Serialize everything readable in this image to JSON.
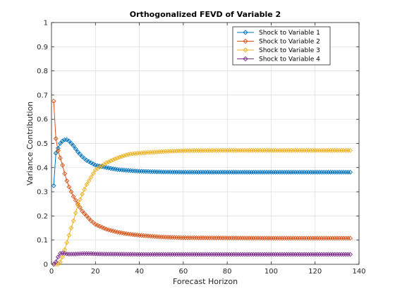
{
  "chart_data": {
    "type": "line",
    "title": "Orthogonalized FEVD of Variable 2",
    "xlabel": "Forecast Horizon",
    "ylabel": "Variance Contribution",
    "xlim": [
      0,
      140
    ],
    "ylim": [
      0,
      1
    ],
    "xticks": [
      "0",
      "20",
      "40",
      "60",
      "80",
      "100",
      "120",
      "140"
    ],
    "yticks": [
      "0",
      "0.1",
      "0.2",
      "0.3",
      "0.4",
      "0.5",
      "0.6",
      "0.7",
      "0.8",
      "0.9",
      "1"
    ],
    "grid": true,
    "legend_position": "top-right",
    "marker": "diamond",
    "x_range": [
      1,
      136
    ],
    "series": [
      {
        "name": "Shock to Variable 1",
        "color": "#0072BD",
        "points": [
          [
            1,
            0.325
          ],
          [
            2,
            0.46
          ],
          [
            3,
            0.48
          ],
          [
            4,
            0.5
          ],
          [
            5,
            0.51
          ],
          [
            6,
            0.515
          ],
          [
            7,
            0.515
          ],
          [
            8,
            0.51
          ],
          [
            9,
            0.5
          ],
          [
            10,
            0.49
          ],
          [
            12,
            0.465
          ],
          [
            14,
            0.445
          ],
          [
            16,
            0.43
          ],
          [
            18,
            0.42
          ],
          [
            20,
            0.41
          ],
          [
            25,
            0.4
          ],
          [
            30,
            0.392
          ],
          [
            35,
            0.388
          ],
          [
            40,
            0.385
          ],
          [
            50,
            0.382
          ],
          [
            60,
            0.381
          ],
          [
            80,
            0.381
          ],
          [
            100,
            0.381
          ],
          [
            136,
            0.381
          ]
        ]
      },
      {
        "name": "Shock to Variable 2",
        "color": "#D95319",
        "points": [
          [
            1,
            0.675
          ],
          [
            2,
            0.52
          ],
          [
            3,
            0.47
          ],
          [
            4,
            0.44
          ],
          [
            5,
            0.41
          ],
          [
            6,
            0.375
          ],
          [
            7,
            0.345
          ],
          [
            8,
            0.32
          ],
          [
            9,
            0.3
          ],
          [
            10,
            0.28
          ],
          [
            12,
            0.25
          ],
          [
            14,
            0.22
          ],
          [
            16,
            0.2
          ],
          [
            18,
            0.18
          ],
          [
            20,
            0.165
          ],
          [
            25,
            0.145
          ],
          [
            30,
            0.133
          ],
          [
            35,
            0.125
          ],
          [
            40,
            0.12
          ],
          [
            50,
            0.113
          ],
          [
            60,
            0.11
          ],
          [
            80,
            0.109
          ],
          [
            100,
            0.108
          ],
          [
            136,
            0.108
          ]
        ]
      },
      {
        "name": "Shock to Variable 3",
        "color": "#EDB120",
        "points": [
          [
            1,
            0.0
          ],
          [
            2,
            0.0
          ],
          [
            3,
            0.0
          ],
          [
            4,
            0.01
          ],
          [
            5,
            0.03
          ],
          [
            6,
            0.06
          ],
          [
            7,
            0.09
          ],
          [
            8,
            0.12
          ],
          [
            9,
            0.15
          ],
          [
            10,
            0.18
          ],
          [
            12,
            0.245
          ],
          [
            14,
            0.29
          ],
          [
            16,
            0.33
          ],
          [
            18,
            0.36
          ],
          [
            20,
            0.39
          ],
          [
            25,
            0.42
          ],
          [
            30,
            0.44
          ],
          [
            35,
            0.455
          ],
          [
            40,
            0.46
          ],
          [
            50,
            0.466
          ],
          [
            60,
            0.47
          ],
          [
            80,
            0.471
          ],
          [
            100,
            0.471
          ],
          [
            136,
            0.471
          ]
        ]
      },
      {
        "name": "Shock to Variable 4",
        "color": "#7E2F8E",
        "points": [
          [
            1,
            0.0
          ],
          [
            2,
            0.01
          ],
          [
            3,
            0.03
          ],
          [
            4,
            0.045
          ],
          [
            5,
            0.047
          ],
          [
            6,
            0.045
          ],
          [
            7,
            0.043
          ],
          [
            8,
            0.042
          ],
          [
            9,
            0.042
          ],
          [
            10,
            0.042
          ],
          [
            12,
            0.043
          ],
          [
            14,
            0.044
          ],
          [
            16,
            0.044
          ],
          [
            18,
            0.044
          ],
          [
            20,
            0.043
          ],
          [
            25,
            0.042
          ],
          [
            30,
            0.042
          ],
          [
            40,
            0.041
          ],
          [
            60,
            0.041
          ],
          [
            80,
            0.041
          ],
          [
            100,
            0.041
          ],
          [
            136,
            0.041
          ]
        ]
      }
    ]
  }
}
